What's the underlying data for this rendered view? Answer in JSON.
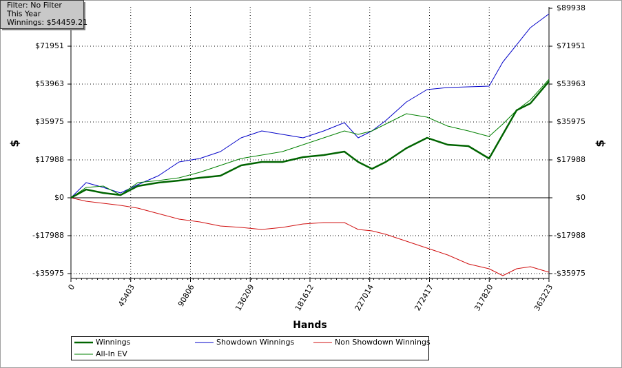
{
  "chart_data": {
    "type": "line",
    "filter_box": [
      "Filter: No Filter",
      "This Year",
      "Winnings: $54459.21"
    ],
    "xlabel": "Hands",
    "ylabel": "$",
    "y2label": "$",
    "x": [
      0,
      11515,
      24600,
      37685,
      50770,
      66472,
      82174,
      97876,
      113578,
      129280,
      144982,
      160684,
      176386,
      192088,
      207790,
      218258,
      228726,
      239194,
      254896,
      270598,
      286300,
      302002,
      317704,
      328172,
      338640,
      349108,
      363223
    ],
    "series": [
      {
        "name": "Winnings",
        "color": "#006400",
        "line_width": 2.5,
        "values": [
          0,
          3924,
          2289,
          1308,
          5559,
          7194,
          8175,
          9483,
          10464,
          15369,
          17004,
          17004,
          19293,
          20274,
          21909,
          17004,
          13734,
          17004,
          23544,
          28449,
          25179,
          24525,
          18639,
          30084,
          41529,
          44799,
          55263
        ]
      },
      {
        "name": "All-In EV",
        "color": "#008000",
        "line_width": 1,
        "values": [
          0,
          4905,
          5559,
          1308,
          7194,
          8175,
          9483,
          12099,
          15369,
          18639,
          20274,
          21909,
          25179,
          28449,
          31719,
          30084,
          31719,
          34989,
          39894,
          38259,
          34008,
          31719,
          29103,
          34989,
          41529,
          46434,
          56244
        ]
      },
      {
        "name": "Showdown Winnings",
        "color": "#0000c8",
        "line_width": 1,
        "values": [
          0,
          7194,
          4905,
          2289,
          6213,
          10464,
          17004,
          18639,
          21909,
          28449,
          31719,
          30084,
          28449,
          31719,
          35643,
          28449,
          31719,
          36624,
          45453,
          51339,
          52320,
          52647,
          52974,
          64419,
          72594,
          80769,
          87309
        ]
      },
      {
        "name": "Non Showdown Winnings",
        "color": "#d01010",
        "line_width": 1,
        "values": [
          0,
          -1635,
          -2616,
          -3597,
          -4905,
          -7521,
          -10137,
          -11445,
          -13407,
          -14061,
          -15042,
          -14061,
          -12426,
          -11772,
          -11772,
          -15042,
          -15696,
          -17331,
          -20601,
          -23871,
          -27141,
          -31392,
          -33681,
          -36951,
          -33681,
          -32700,
          -35316
        ]
      }
    ],
    "xlim": [
      0,
      363223
    ],
    "xticks": [
      0,
      45403,
      90806,
      136209,
      181612,
      227014,
      272417,
      317820,
      363223
    ],
    "ylim": [
      -38265,
      90600
    ],
    "yticks": [
      {
        "value": -35975,
        "label": "-$35975"
      },
      {
        "value": -17988,
        "label": "-$17988"
      },
      {
        "value": 0,
        "label": "$0"
      },
      {
        "value": 17988,
        "label": "$17988"
      },
      {
        "value": 35975,
        "label": "$35975"
      },
      {
        "value": 53963,
        "label": "$53963"
      },
      {
        "value": 71951,
        "label": "$71951"
      }
    ],
    "y2lim": [
      -38265,
      90600
    ],
    "y2ticks": [
      {
        "value": -35975,
        "label": "-$35975"
      },
      {
        "value": -17988,
        "label": "-$17988"
      },
      {
        "value": 0,
        "label": "$0"
      },
      {
        "value": 17988,
        "label": "$17988"
      },
      {
        "value": 35975,
        "label": "$35975"
      },
      {
        "value": 53963,
        "label": "$53963"
      },
      {
        "value": 71951,
        "label": "$71951"
      },
      {
        "value": 89938,
        "label": "$89938"
      }
    ],
    "grid": true
  }
}
